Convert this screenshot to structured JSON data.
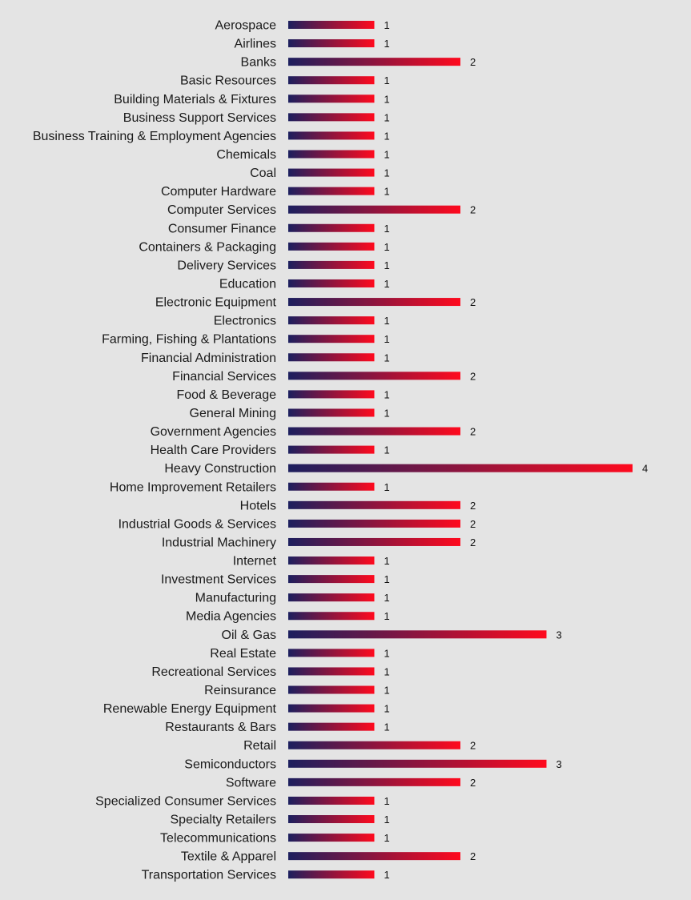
{
  "chart_data": {
    "type": "bar",
    "orientation": "horizontal",
    "title": "",
    "xlabel": "",
    "ylabel": "",
    "xlim": [
      0,
      4
    ],
    "grid": false,
    "legend": "none",
    "colors": {
      "background": "#e4e4e4",
      "bar_gradient_start": "#1c1f5e",
      "bar_gradient_end": "#ff0a1e",
      "label_text": "#1a1a1a"
    },
    "categories": [
      "Aerospace",
      "Airlines",
      "Banks",
      "Basic Resources",
      "Building Materials & Fixtures",
      "Business Support Services",
      "Business Training & Employment Agencies",
      "Chemicals",
      "Coal",
      "Computer Hardware",
      "Computer Services",
      "Consumer Finance",
      "Containers & Packaging",
      "Delivery Services",
      "Education",
      "Electronic Equipment",
      "Electronics",
      "Farming, Fishing & Plantations",
      "Financial Administration",
      "Financial Services",
      "Food & Beverage",
      "General Mining",
      "Government Agencies",
      "Health Care Providers",
      "Heavy Construction",
      "Home Improvement Retailers",
      "Hotels",
      "Industrial Goods & Services",
      "Industrial Machinery",
      "Internet",
      "Investment Services",
      "Manufacturing",
      "Media Agencies",
      "Oil & Gas",
      "Real Estate",
      "Recreational Services",
      "Reinsurance",
      "Renewable Energy Equipment",
      "Restaurants & Bars",
      "Retail",
      "Semiconductors",
      "Software",
      "Specialized Consumer Services",
      "Specialty Retailers",
      "Telecommunications",
      "Textile & Apparel",
      "Transportation Services"
    ],
    "values": [
      1,
      1,
      2,
      1,
      1,
      1,
      1,
      1,
      1,
      1,
      2,
      1,
      1,
      1,
      1,
      2,
      1,
      1,
      1,
      2,
      1,
      1,
      2,
      1,
      4,
      1,
      2,
      2,
      2,
      1,
      1,
      1,
      1,
      3,
      1,
      1,
      1,
      1,
      1,
      2,
      3,
      2,
      1,
      1,
      1,
      2,
      1
    ]
  }
}
